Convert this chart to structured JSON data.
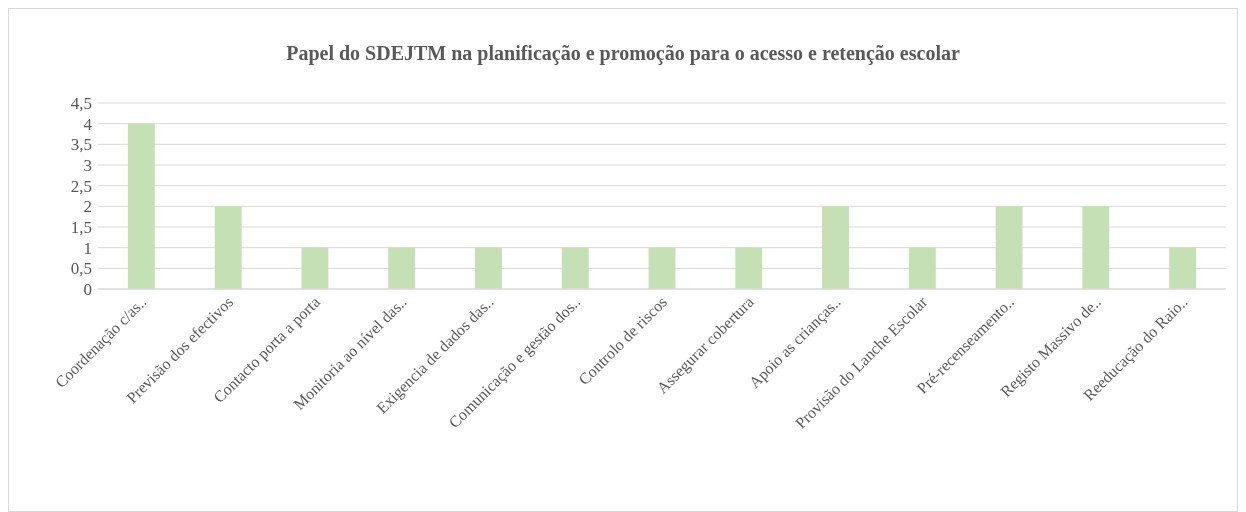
{
  "chart_data": {
    "type": "bar",
    "title": "Papel do SDEJTM na planificação e promoção para o acesso e retenção escolar",
    "categories": [
      "Coordenação c/as..",
      "Previsão dos efectivos",
      "Contacto porta a porta",
      "Monitoria ao nível das..",
      "Exigencia de dados  das..",
      "Comunicação e  gestão dos..",
      "Controlo de riscos",
      "Assegurar cobertura",
      "Apoio as crianças..",
      "Provisão do Lanche Escolar",
      "Pré-recenseamento..",
      "Registo Massivo de..",
      "Reeducação do Raio.."
    ],
    "values": [
      4,
      2,
      1,
      1,
      1,
      1,
      1,
      1,
      2,
      1,
      2,
      2,
      1
    ],
    "color": "#c5e0b4",
    "ylim": [
      0,
      4.5
    ],
    "yticks": [
      0,
      {
        "value": 0.5,
        "label": "0,5"
      },
      1,
      {
        "value": 1.5,
        "label": "1,5"
      },
      2,
      {
        "value": 2.5,
        "label": "2,5"
      },
      3,
      {
        "value": 3.5,
        "label": "3,5"
      },
      4,
      {
        "value": 4.5,
        "label": "4,5"
      }
    ],
    "grid": "y"
  }
}
